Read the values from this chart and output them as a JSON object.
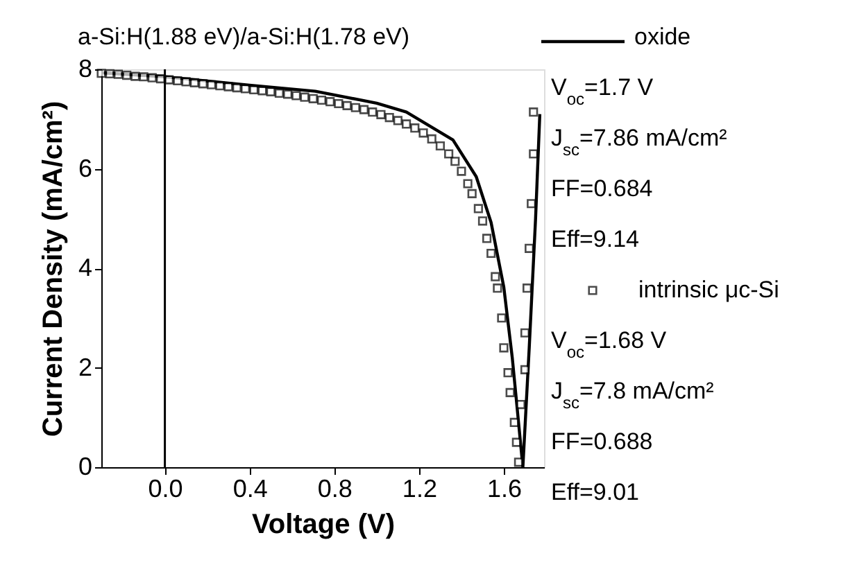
{
  "chart_data": {
    "type": "line",
    "title": "a-Si:H(1.88 eV)/a-Si:H(1.78 eV)",
    "xlabel": "Voltage (V)",
    "ylabel": "Current Density (mA/cm²)",
    "xlim": [
      -0.3,
      1.79
    ],
    "ylim": [
      0,
      8
    ],
    "xticks": [
      {
        "value": 0,
        "label": "0.0"
      },
      0.4,
      0.8,
      1.2,
      1.6
    ],
    "yticks": [
      0,
      2,
      4,
      6,
      8
    ],
    "grid": false,
    "legend": "right",
    "ref_lines": [
      {
        "axis": "x",
        "value": 0,
        "color": "#000000"
      }
    ],
    "annotations": [
      "V$_{oc}$=1.7 V",
      "J$_{sc}$=7.86 mA/cm²",
      "FF=0.684",
      "Eff=9.14",
      "V$_{oc}$=1.68 V",
      "J$_{sc}$=7.8 mA/cm²",
      "FF=0.688",
      "Eff=9.01"
    ],
    "series": [
      {
        "name": "oxide",
        "color": "#000000",
        "marker": "none",
        "line_style": "solid",
        "x": [
          -0.3,
          0,
          0.4,
          0.71,
          1.0,
          1.14,
          1.36,
          1.47,
          1.54,
          1.6,
          1.64,
          1.69,
          1.72,
          1.75,
          1.77
        ],
        "values": [
          7.93,
          7.85,
          7.68,
          7.56,
          7.32,
          7.14,
          6.58,
          5.84,
          4.92,
          3.62,
          2.2,
          0,
          2.4,
          5.0,
          7.1
        ]
      },
      {
        "name": "intrinsic μc-Si",
        "color": "#000000",
        "type": "scatter",
        "marker": "square",
        "x": [
          -0.3,
          -0.26,
          -0.22,
          -0.18,
          -0.14,
          -0.1,
          -0.06,
          -0.02,
          0.02,
          0.06,
          0.1,
          0.14,
          0.18,
          0.22,
          0.26,
          0.3,
          0.34,
          0.38,
          0.42,
          0.46,
          0.5,
          0.54,
          0.58,
          0.62,
          0.66,
          0.7,
          0.74,
          0.78,
          0.82,
          0.86,
          0.9,
          0.94,
          0.98,
          1.02,
          1.06,
          1.1,
          1.14,
          1.18,
          1.22,
          1.26,
          1.3,
          1.34,
          1.37,
          1.4,
          1.43,
          1.45,
          1.48,
          1.5,
          1.52,
          1.54,
          1.56,
          1.57,
          1.59,
          1.6,
          1.62,
          1.63,
          1.65,
          1.66,
          1.67,
          1.68,
          1.7,
          1.7,
          1.71,
          1.72,
          1.73,
          1.74,
          1.74
        ],
        "values": [
          7.92,
          7.91,
          7.9,
          7.88,
          7.86,
          7.85,
          7.83,
          7.81,
          7.79,
          7.77,
          7.75,
          7.73,
          7.71,
          7.69,
          7.67,
          7.65,
          7.63,
          7.61,
          7.59,
          7.57,
          7.55,
          7.52,
          7.5,
          7.47,
          7.44,
          7.41,
          7.38,
          7.35,
          7.31,
          7.27,
          7.23,
          7.19,
          7.14,
          7.09,
          7.03,
          6.97,
          6.9,
          6.82,
          6.72,
          6.6,
          6.46,
          6.3,
          6.15,
          5.95,
          5.7,
          5.5,
          5.2,
          4.95,
          4.6,
          4.3,
          3.83,
          3.6,
          3.0,
          2.4,
          1.9,
          1.5,
          0.9,
          0.5,
          0.1,
          1.26,
          1.96,
          2.7,
          3.6,
          4.4,
          5.3,
          6.3,
          7.14
        ]
      }
    ]
  }
}
